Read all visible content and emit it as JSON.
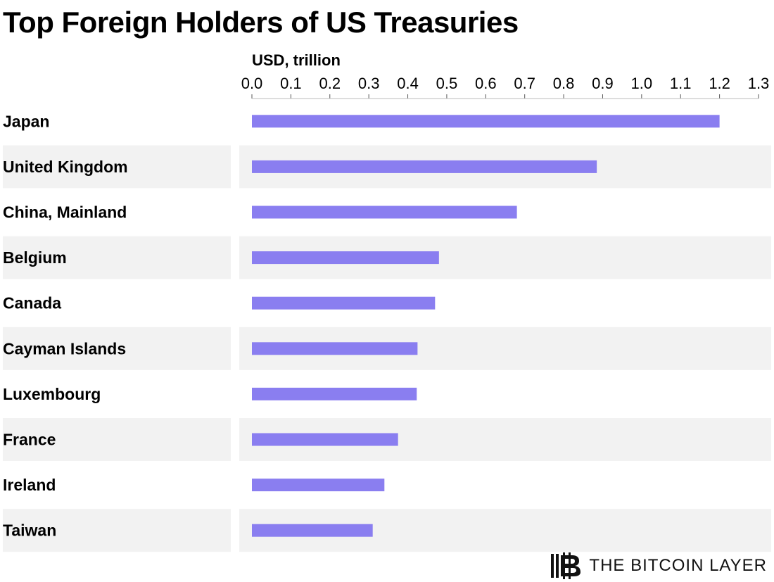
{
  "chart_data": {
    "type": "bar",
    "orientation": "horizontal",
    "title": "Top Foreign Holders of US Treasuries",
    "unit_label": "USD, trillion",
    "categories": [
      "Japan",
      "United Kingdom",
      "China, Mainland",
      "Belgium",
      "Canada",
      "Cayman Islands",
      "Luxembourg",
      "France",
      "Ireland",
      "Taiwan"
    ],
    "values": [
      1.2,
      0.885,
      0.68,
      0.48,
      0.47,
      0.425,
      0.423,
      0.375,
      0.34,
      0.31
    ],
    "xlim": [
      0,
      1.3
    ],
    "ticks": [
      "0.0",
      "0.1",
      "0.2",
      "0.3",
      "0.4",
      "0.5",
      "0.6",
      "0.7",
      "0.8",
      "0.9",
      "1.0",
      "1.1",
      "1.2",
      "1.3"
    ],
    "axis_position": "top",
    "grid": false,
    "colors": {
      "bar": "#8a7ef0",
      "row_band": "#f2f2f2"
    }
  },
  "brand": {
    "name": "THE BITCOIN LAYER",
    "logo_icon": "bitcoin-layer-logo-icon"
  }
}
